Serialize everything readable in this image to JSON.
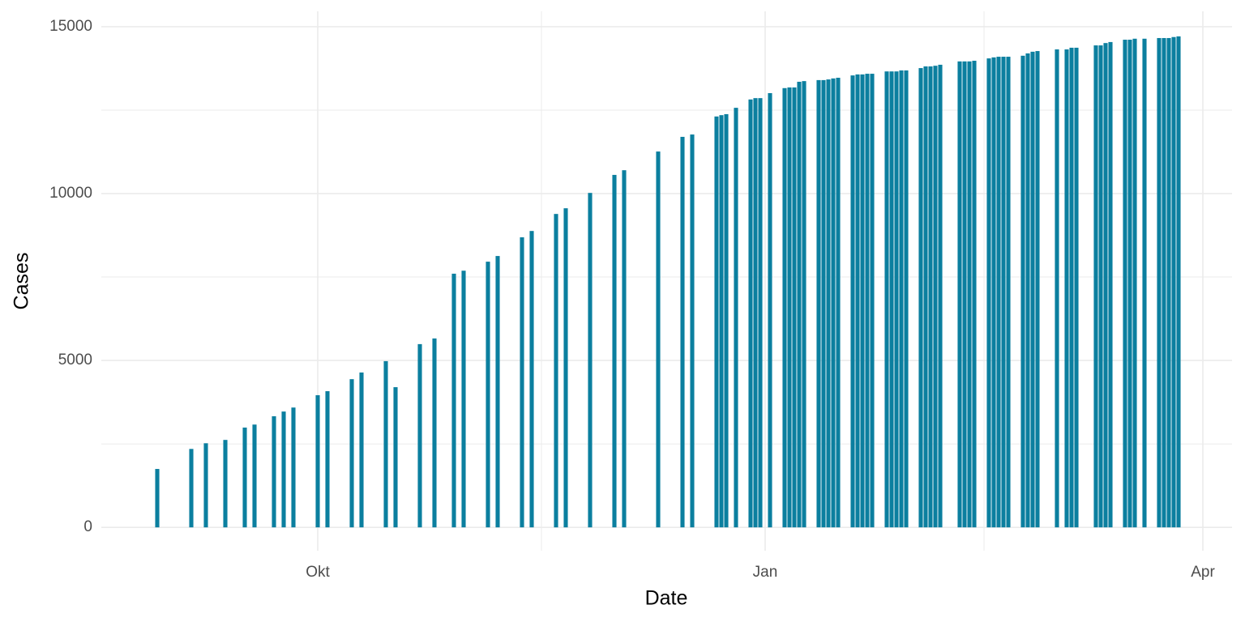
{
  "chart_data": {
    "type": "bar",
    "x_label": "Date",
    "y_label": "Cases",
    "color": "#0b7f9f",
    "grid": true,
    "x": [
      -33,
      -26,
      -23,
      -19,
      -15,
      -13,
      -9,
      -7,
      -5,
      0,
      2,
      7,
      9,
      14,
      16,
      21,
      24,
      28,
      30,
      35,
      37,
      42,
      44,
      49,
      51,
      56,
      61,
      63,
      70,
      75,
      77,
      82,
      83,
      84,
      86,
      89,
      90,
      91,
      93,
      96,
      97,
      98,
      99,
      100,
      103,
      104,
      105,
      106,
      107,
      110,
      111,
      112,
      113,
      114,
      117,
      118,
      119,
      120,
      121,
      124,
      125,
      126,
      127,
      128,
      132,
      133,
      134,
      135,
      138,
      139,
      140,
      141,
      142,
      145,
      146,
      147,
      148,
      152,
      154,
      155,
      156,
      160,
      161,
      162,
      163,
      166,
      167,
      168,
      170,
      173,
      174,
      175,
      176,
      177
    ],
    "values": [
      1750,
      2350,
      2520,
      2620,
      2990,
      3080,
      3330,
      3470,
      3590,
      3960,
      4080,
      4440,
      4640,
      4980,
      4200,
      5490,
      5660,
      7600,
      7690,
      7960,
      8130,
      8690,
      8880,
      9390,
      9560,
      10020,
      10560,
      10700,
      11260,
      11700,
      11770,
      12310,
      12350,
      12380,
      12570,
      12820,
      12860,
      12860,
      13010,
      13160,
      13180,
      13180,
      13350,
      13370,
      13400,
      13400,
      13420,
      13450,
      13470,
      13540,
      13570,
      13570,
      13590,
      13590,
      13660,
      13660,
      13660,
      13690,
      13690,
      13760,
      13810,
      13810,
      13830,
      13860,
      13960,
      13960,
      13960,
      13980,
      14050,
      14080,
      14100,
      14100,
      14100,
      14130,
      14200,
      14250,
      14270,
      14320,
      14320,
      14370,
      14370,
      14440,
      14440,
      14510,
      14540,
      14610,
      14610,
      14640,
      14640,
      14660,
      14660,
      14660,
      14690,
      14710
    ],
    "xlim": [
      -44.5,
      188
    ],
    "xticks": [
      {
        "value": 0,
        "label": "Okt"
      },
      {
        "value": 92,
        "label": "Jan"
      },
      {
        "value": 182,
        "label": "Apr"
      }
    ],
    "ylim": [
      -700,
      15460
    ],
    "yticks": [
      0,
      5000,
      10000,
      15000
    ]
  }
}
